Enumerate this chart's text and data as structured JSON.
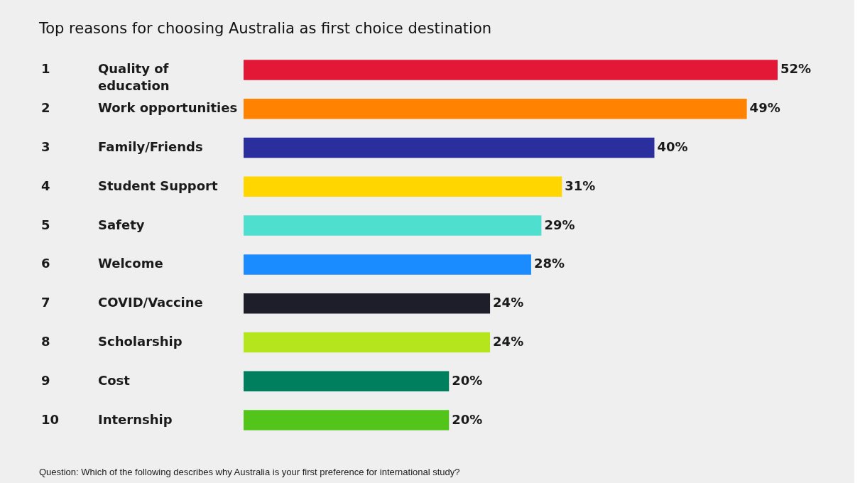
{
  "chart_data": {
    "type": "bar",
    "orientation": "horizontal",
    "title": "Top reasons for choosing Australia as first choice destination",
    "categories": [
      "Quality of education",
      "Work opportunities",
      "Family/Friends",
      "Student Support",
      "Safety",
      "Welcome",
      "COVID/Vaccine",
      "Scholarship",
      "Cost",
      "Internship"
    ],
    "values": [
      52,
      49,
      40,
      31,
      29,
      28,
      24,
      24,
      20,
      20
    ],
    "value_labels": [
      "52%",
      "49%",
      "40%",
      "31%",
      "29%",
      "28%",
      "24%",
      "24%",
      "20%",
      "20%"
    ],
    "colors": [
      "#e31837",
      "#ff8200",
      "#2b2f9e",
      "#ffd600",
      "#4fdfcf",
      "#1a8cff",
      "#1e1e2a",
      "#b5e61d",
      "#007f5f",
      "#52c41a"
    ],
    "tick_labels": false,
    "annotations": [
      "1",
      "2",
      "3",
      "4",
      "5",
      "6",
      "7",
      "8",
      "9",
      "10",
      "Question: Which of the following describes why Australia is your first preference for international study?"
    ]
  }
}
